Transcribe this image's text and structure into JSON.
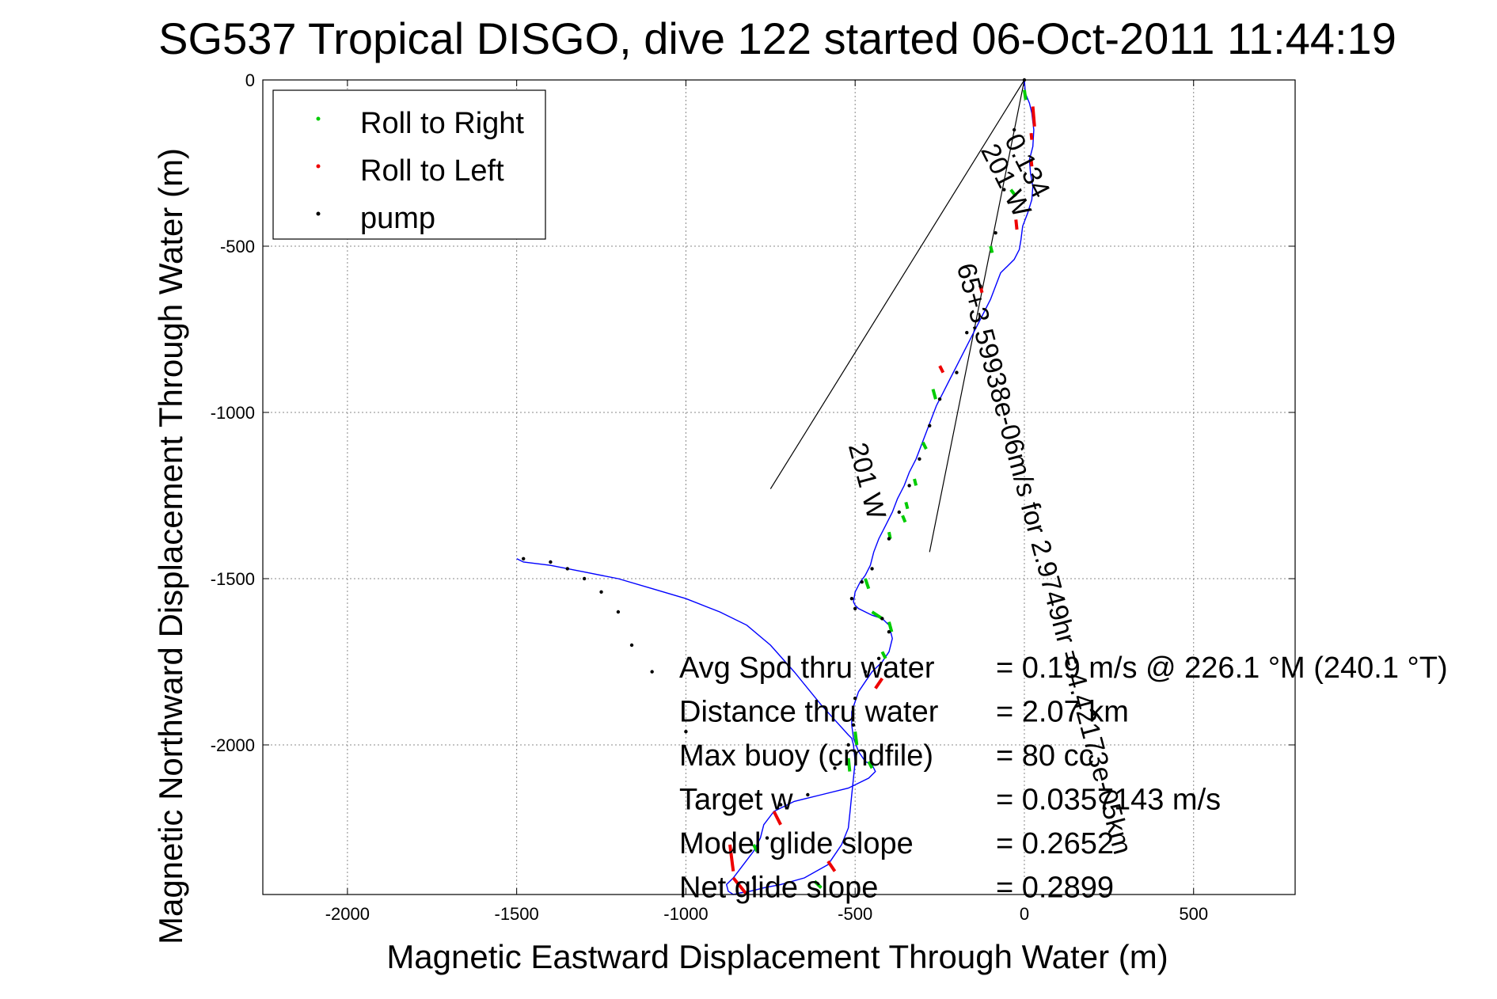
{
  "chart_data": {
    "type": "line",
    "title": "SG537 Tropical DISGO, dive 122 started 06-Oct-2011 11:44:19",
    "xlabel": "Magnetic Eastward Displacement Through Water (m)",
    "ylabel": "Magnetic Northward Displacement Through Water (m)",
    "xlim": [
      -2250,
      800
    ],
    "ylim": [
      -2450,
      0
    ],
    "xticks": [
      -2000,
      -1500,
      -1000,
      -500,
      0,
      500
    ],
    "yticks": [
      0,
      -500,
      -1000,
      -1500,
      -2000
    ],
    "grid": true,
    "legend_position": "top-left",
    "legend": [
      {
        "label": "Roll to Right",
        "color": "#00cc00"
      },
      {
        "label": "Roll to Left",
        "color": "#ee0000"
      },
      {
        "label": "pump",
        "color": "#000000"
      }
    ],
    "track_color": "#0000ff",
    "track": {
      "x": [
        0,
        3,
        15,
        22,
        28,
        25,
        15,
        18,
        25,
        22,
        10,
        -5,
        -10,
        -15,
        -30,
        -50,
        -70,
        -85,
        -100,
        -120,
        -140,
        -160,
        -180,
        -200,
        -220,
        -240,
        -260,
        -275,
        -290,
        -305,
        -320,
        -340,
        -355,
        -375,
        -390,
        -410,
        -430,
        -445,
        -455,
        -470,
        -485,
        -500,
        -505,
        -500,
        -490,
        -470,
        -450,
        -420,
        -400,
        -390,
        -400,
        -420,
        -450,
        -470,
        -490,
        -500,
        -510,
        -510,
        -505,
        -490,
        -470,
        -450,
        -440,
        -460,
        -520,
        -600,
        -680,
        -740,
        -770,
        -780,
        -800,
        -830,
        -860,
        -880,
        -875,
        -860,
        -840,
        -810,
        -770,
        -720,
        -650,
        -580,
        -540,
        -520,
        -515,
        -510,
        -505,
        -500,
        -505,
        -510,
        -520,
        -600,
        -680,
        -750,
        -820,
        -900,
        -1000,
        -1100,
        -1200,
        -1300,
        -1400,
        -1480,
        -1500
      ],
      "y": [
        0,
        -40,
        -70,
        -100,
        -150,
        -200,
        -240,
        -280,
        -320,
        -360,
        -400,
        -440,
        -480,
        -510,
        -540,
        -560,
        -580,
        -620,
        -660,
        -700,
        -740,
        -780,
        -820,
        -860,
        -900,
        -940,
        -980,
        -1020,
        -1060,
        -1100,
        -1140,
        -1180,
        -1220,
        -1260,
        -1300,
        -1340,
        -1380,
        -1420,
        -1460,
        -1490,
        -1510,
        -1540,
        -1570,
        -1580,
        -1590,
        -1600,
        -1610,
        -1620,
        -1640,
        -1680,
        -1720,
        -1750,
        -1780,
        -1810,
        -1840,
        -1870,
        -1900,
        -1940,
        -1980,
        -2020,
        -2050,
        -2060,
        -2080,
        -2100,
        -2130,
        -2150,
        -2170,
        -2200,
        -2240,
        -2280,
        -2320,
        -2360,
        -2400,
        -2420,
        -2440,
        -2450,
        -2445,
        -2440,
        -2430,
        -2420,
        -2400,
        -2360,
        -2300,
        -2250,
        -2200,
        -2150,
        -2100,
        -2050,
        -2000,
        -1980,
        -1970,
        -1880,
        -1780,
        -1700,
        -1640,
        -1600,
        -1560,
        -1530,
        -1500,
        -1480,
        -1460,
        -1450,
        -1440
      ]
    },
    "roll_right_segments": [
      {
        "x": [
          0,
          4
        ],
        "y": [
          -30,
          -60
        ]
      },
      {
        "x": [
          -40,
          -25
        ],
        "y": [
          -330,
          -350
        ]
      },
      {
        "x": [
          -100,
          -95
        ],
        "y": [
          -500,
          -520
        ]
      },
      {
        "x": [
          -270,
          -262
        ],
        "y": [
          -930,
          -960
        ]
      },
      {
        "x": [
          -300,
          -290
        ],
        "y": [
          -1090,
          -1110
        ]
      },
      {
        "x": [
          -325,
          -320
        ],
        "y": [
          -1200,
          -1220
        ]
      },
      {
        "x": [
          -350,
          -345
        ],
        "y": [
          -1270,
          -1290
        ]
      },
      {
        "x": [
          -360,
          -352
        ],
        "y": [
          -1310,
          -1330
        ]
      },
      {
        "x": [
          -400,
          -396
        ],
        "y": [
          -1360,
          -1380
        ]
      },
      {
        "x": [
          -470,
          -460
        ],
        "y": [
          -1500,
          -1530
        ]
      },
      {
        "x": [
          -450,
          -420
        ],
        "y": [
          -1600,
          -1620
        ]
      },
      {
        "x": [
          -400,
          -392
        ],
        "y": [
          -1630,
          -1660
        ]
      },
      {
        "x": [
          -420,
          -410
        ],
        "y": [
          -1720,
          -1740
        ]
      },
      {
        "x": [
          -500,
          -495
        ],
        "y": [
          -1960,
          -2000
        ]
      },
      {
        "x": [
          -460,
          -450
        ],
        "y": [
          -2050,
          -2070
        ]
      },
      {
        "x": [
          -520,
          -516
        ],
        "y": [
          -2040,
          -2080
        ]
      },
      {
        "x": [
          -800,
          -790
        ],
        "y": [
          -2300,
          -2320
        ]
      },
      {
        "x": [
          -620,
          -600
        ],
        "y": [
          -2410,
          -2430
        ]
      }
    ],
    "roll_left_segments": [
      {
        "x": [
          25,
          30
        ],
        "y": [
          -80,
          -140
        ]
      },
      {
        "x": [
          20,
          22
        ],
        "y": [
          -160,
          -180
        ]
      },
      {
        "x": [
          20,
          22
        ],
        "y": [
          -240,
          -260
        ]
      },
      {
        "x": [
          -25,
          -22
        ],
        "y": [
          -420,
          -450
        ]
      },
      {
        "x": [
          -130,
          -125
        ],
        "y": [
          -620,
          -640
        ]
      },
      {
        "x": [
          -250,
          -240
        ],
        "y": [
          -860,
          -880
        ]
      },
      {
        "x": [
          -420,
          -440
        ],
        "y": [
          -1800,
          -1830
        ]
      },
      {
        "x": [
          -870,
          -860
        ],
        "y": [
          -2300,
          -2380
        ]
      },
      {
        "x": [
          -860,
          -820
        ],
        "y": [
          -2400,
          -2450
        ]
      },
      {
        "x": [
          -740,
          -720
        ],
        "y": [
          -2200,
          -2240
        ]
      },
      {
        "x": [
          -580,
          -560
        ],
        "y": [
          -2350,
          -2380
        ]
      }
    ],
    "pump_points": {
      "x": [
        0,
        -30,
        -60,
        -85,
        -130,
        -170,
        -200,
        -250,
        -280,
        -310,
        -340,
        -370,
        -400,
        -450,
        -480,
        -510,
        -500,
        -420,
        -400,
        -430,
        -470,
        -500,
        -505,
        -520,
        -560,
        -640,
        -720,
        -760,
        -800,
        -1000,
        -1100,
        -1160,
        -1200,
        -1250,
        -1300,
        -1350,
        -1400,
        -1480
      ],
      "y": [
        0,
        -150,
        -330,
        -460,
        -620,
        -760,
        -880,
        -960,
        -1040,
        -1140,
        -1220,
        -1300,
        -1380,
        -1470,
        -1510,
        -1560,
        -1590,
        -1620,
        -1660,
        -1740,
        -1780,
        -1860,
        -1940,
        -2000,
        -2070,
        -2150,
        -2180,
        -2280,
        -2400,
        -1960,
        -1780,
        -1700,
        -1600,
        -1540,
        -1500,
        -1470,
        -1450,
        -1440
      ]
    },
    "annotation_lines": [
      {
        "x": [
          0,
          -750
        ],
        "y": [
          0,
          -1230
        ]
      },
      {
        "x": [
          0,
          -280
        ],
        "y": [
          0,
          -1420
        ]
      }
    ],
    "rotated_labels": [
      {
        "text": "0.134",
        "x": -60,
        "y": -180,
        "rotation": 63
      },
      {
        "text": "201 W",
        "x": -130,
        "y": -210,
        "rotation": 63
      },
      {
        "text": "65+3.59938e-06m/s for 2.9749hr = 4.42173e-05km",
        "x": -200,
        "y": -560,
        "rotation": 75
      },
      {
        "text": "201 W",
        "x": -520,
        "y": -1100,
        "rotation": 75
      }
    ],
    "stats": [
      {
        "label": "Avg Spd thru water",
        "value": "=  0.19 m/s @ 226.1 °M (240.1 °T)"
      },
      {
        "label": "Distance thru water",
        "value": "=  2.07 km"
      },
      {
        "label": "Max buoy (cmdfile)",
        "value": "= 80 cc"
      },
      {
        "label": "Target w",
        "value": "= 0.0357143 m/s"
      },
      {
        "label": "Model glide slope",
        "value": "= 0.2652"
      },
      {
        "label": "Net glide slope",
        "value": "= 0.2899"
      }
    ]
  }
}
